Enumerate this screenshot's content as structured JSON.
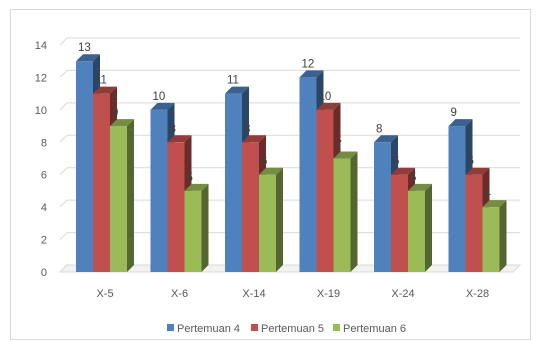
{
  "chart_data": {
    "type": "bar",
    "style": "3d-clustered-column",
    "categories": [
      "X-5",
      "X-6",
      "X-14",
      "X-19",
      "X-24",
      "X-28"
    ],
    "series": [
      {
        "name": "Pertemuan 4",
        "color": "#4f81bd",
        "values": [
          13,
          10,
          11,
          12,
          8,
          9
        ]
      },
      {
        "name": "Pertemuan 5",
        "color": "#c0504d",
        "values": [
          11,
          8,
          8,
          10,
          6,
          6
        ]
      },
      {
        "name": "Pertemuan 6",
        "color": "#9bbb59",
        "values": [
          9,
          5,
          6,
          7,
          5,
          4
        ]
      }
    ],
    "yticks": [
      0,
      2,
      4,
      6,
      8,
      10,
      12,
      14
    ],
    "ylim": [
      0,
      14
    ],
    "grid": true,
    "legend_position": "bottom",
    "data_labels": true,
    "title": "",
    "xlabel": "",
    "ylabel": ""
  }
}
